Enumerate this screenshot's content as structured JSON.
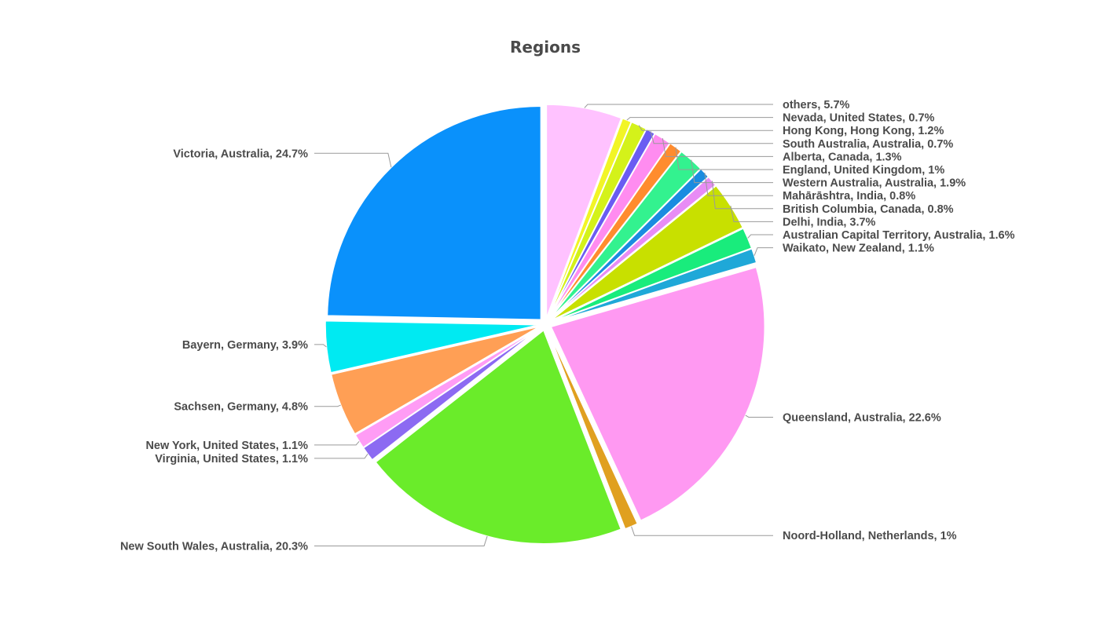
{
  "chart_data": {
    "type": "pie",
    "title": "Regions",
    "slices": [
      {
        "label": "others, 5.7%",
        "value": 5.7,
        "color": "#ffc2ff"
      },
      {
        "label": "Nevada, United States, 0.7%",
        "value": 0.7,
        "color": "#f2f526"
      },
      {
        "label": "Hong Kong, Hong Kong, 1.2%",
        "value": 1.2,
        "color": "#d4f21a"
      },
      {
        "label": "South Australia, Australia, 0.7%",
        "value": 0.7,
        "color": "#6a5cf2"
      },
      {
        "label": "Alberta, Canada, 1.3%",
        "value": 1.3,
        "color": "#ff8cf0"
      },
      {
        "label": "England, United Kingdom, 1%",
        "value": 1.0,
        "color": "#ff8c2e"
      },
      {
        "label": "Western Australia, Australia, 1.9%",
        "value": 1.9,
        "color": "#33f28f"
      },
      {
        "label": "Mahārāshtra, India, 0.8%",
        "value": 0.8,
        "color": "#1a8ce0"
      },
      {
        "label": "British Columbia, Canada, 0.8%",
        "value": 0.8,
        "color": "#e88cf5"
      },
      {
        "label": "Delhi, India, 3.7%",
        "value": 3.7,
        "color": "#c8e000"
      },
      {
        "label": "Australian Capital Territory, Australia, 1.6%",
        "value": 1.6,
        "color": "#19ec7c"
      },
      {
        "label": "Waikato, New Zealand, 1.1%",
        "value": 1.1,
        "color": "#1fa8d8"
      },
      {
        "label": "Queensland, Australia, 22.6%",
        "value": 22.6,
        "color": "#ff99f2"
      },
      {
        "label": "Noord-Holland, Netherlands, 1%",
        "value": 1.0,
        "color": "#e0a020"
      },
      {
        "label": "New South Wales, Australia, 20.3%",
        "value": 20.3,
        "color": "#6aec2a"
      },
      {
        "label": "Virginia, United States, 1.1%",
        "value": 1.1,
        "color": "#8c6af2"
      },
      {
        "label": "New York, United States, 1.1%",
        "value": 1.1,
        "color": "#ff9cf5"
      },
      {
        "label": "Sachsen, Germany, 4.8%",
        "value": 4.8,
        "color": "#ff9f55"
      },
      {
        "label": "Bayern, Germany, 3.9%",
        "value": 3.9,
        "color": "#00eaf2"
      },
      {
        "label": "Victoria, Australia, 24.7%",
        "value": 24.7,
        "color": "#0a91fb"
      }
    ]
  }
}
